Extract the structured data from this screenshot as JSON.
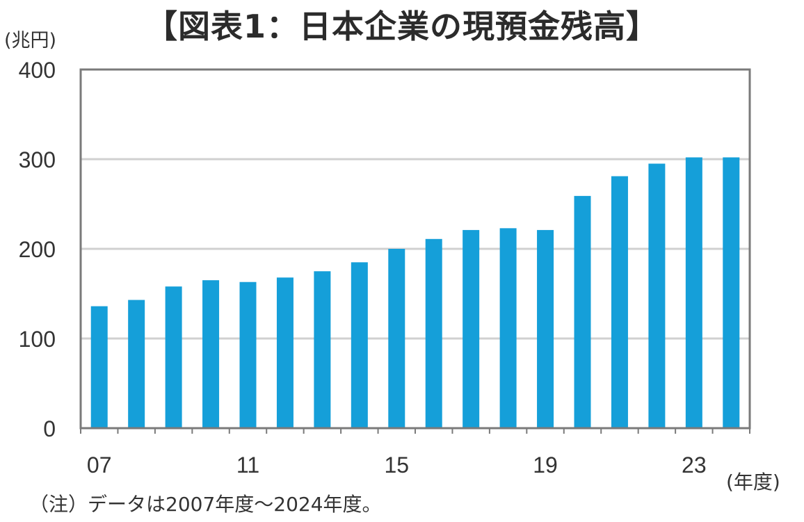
{
  "title": "【図表1：日本企業の現預金残高】",
  "y_unit": "(兆円)",
  "x_unit": "(年度)",
  "note": "（注）データは2007年度～2024年度。",
  "colors": {
    "bar": "#159fd9",
    "grid": "#d0d0d0",
    "axis": "#7a7a7a"
  },
  "chart_data": {
    "type": "bar",
    "title": "【図表1：日本企業の現預金残高】",
    "xlabel": "(年度)",
    "ylabel": "(兆円)",
    "ylim": [
      0,
      400
    ],
    "yticks": [
      0,
      100,
      200,
      300,
      400
    ],
    "grid": true,
    "categories": [
      "07",
      "08",
      "09",
      "10",
      "11",
      "12",
      "13",
      "14",
      "15",
      "16",
      "17",
      "18",
      "19",
      "20",
      "21",
      "22",
      "23",
      "24"
    ],
    "x_tick_labels": [
      "07",
      "11",
      "15",
      "19",
      "23"
    ],
    "values": [
      136,
      143,
      158,
      165,
      163,
      168,
      175,
      185,
      200,
      211,
      221,
      223,
      221,
      259,
      281,
      295,
      302,
      302
    ]
  }
}
